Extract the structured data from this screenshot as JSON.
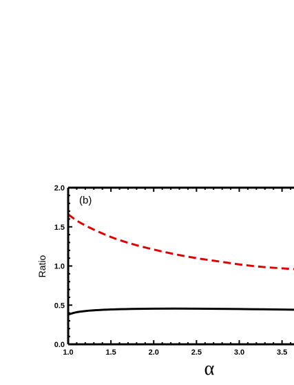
{
  "chart_data": {
    "type": "line",
    "panel_label": "(b)",
    "xlabel": "α",
    "ylabel": "Ratio",
    "xlim": [
      1.0,
      3.64
    ],
    "ylim": [
      0.0,
      2.0
    ],
    "x_ticks": [
      "1.0",
      "1.5",
      "2.0",
      "2.5",
      "3.0",
      "3.5"
    ],
    "y_ticks": [
      "0.0",
      "0.5",
      "1.0",
      "1.5",
      "2.0"
    ],
    "grid": false,
    "series": [
      {
        "color": "#e00000",
        "style": "dashed",
        "x": [
          1.0,
          1.1,
          1.25,
          1.5,
          1.75,
          2.0,
          2.25,
          2.5,
          2.75,
          3.0,
          3.25,
          3.5,
          3.64
        ],
        "y": [
          1.66,
          1.58,
          1.49,
          1.37,
          1.28,
          1.21,
          1.15,
          1.1,
          1.06,
          1.02,
          0.99,
          0.97,
          0.96
        ]
      },
      {
        "color": "#000000",
        "style": "solid",
        "x": [
          1.0,
          1.1,
          1.25,
          1.5,
          1.75,
          2.0,
          2.25,
          2.5,
          2.75,
          3.0,
          3.25,
          3.5,
          3.64
        ],
        "y": [
          0.38,
          0.41,
          0.43,
          0.445,
          0.452,
          0.455,
          0.456,
          0.455,
          0.453,
          0.45,
          0.447,
          0.444,
          0.442
        ]
      }
    ]
  }
}
